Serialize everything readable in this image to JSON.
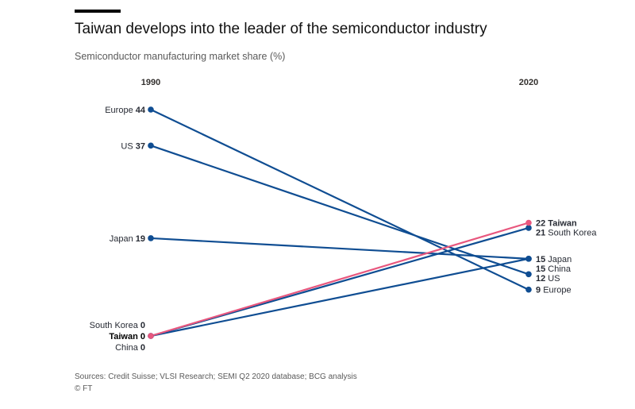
{
  "header": {
    "title": "Taiwan develops into the leader of the semiconductor industry",
    "subtitle": "Semiconductor manufacturing market share (%)"
  },
  "footer": {
    "source": "Sources: Credit Suisse; VLSI Research; SEMI Q2 2020 database; BCG analysis",
    "credit": "© FT"
  },
  "colors": {
    "line": "#0f4d92",
    "highlight": "#e8577e",
    "rule": "#000000"
  },
  "chart_data": {
    "type": "line",
    "title": "Taiwan develops into the leader of the semiconductor industry",
    "subtitle": "Semiconductor manufacturing market share (%)",
    "categories": [
      "1990",
      "2020"
    ],
    "ylim": [
      0,
      44
    ],
    "grid": false,
    "legend": "none",
    "series": [
      {
        "name": "Europe",
        "values": [
          44,
          9
        ],
        "highlight": false
      },
      {
        "name": "US",
        "values": [
          37,
          12
        ],
        "highlight": false
      },
      {
        "name": "Japan",
        "values": [
          19,
          15
        ],
        "highlight": false
      },
      {
        "name": "South Korea",
        "values": [
          0,
          21
        ],
        "highlight": false
      },
      {
        "name": "China",
        "values": [
          0,
          15
        ],
        "highlight": false
      },
      {
        "name": "Taiwan",
        "values": [
          0,
          22
        ],
        "highlight": true
      }
    ],
    "start_label_order": [
      "Europe",
      "US",
      "Japan",
      "South Korea",
      "Taiwan",
      "China"
    ],
    "end_label_order": [
      "Taiwan",
      "South Korea",
      "Japan",
      "China",
      "US",
      "Europe"
    ]
  }
}
